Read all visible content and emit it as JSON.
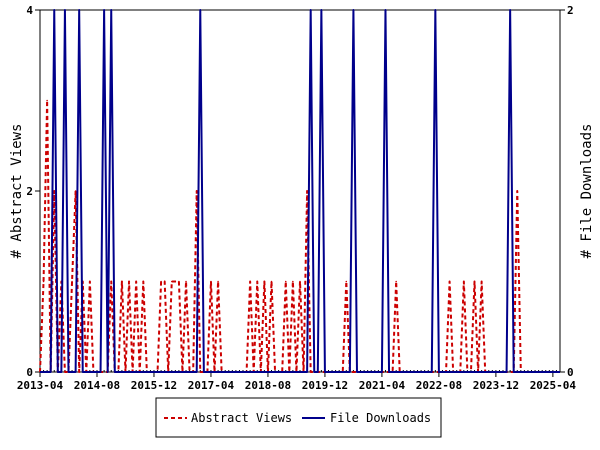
{
  "chart_data": {
    "type": "line",
    "x_start": "2013-04",
    "x_end": "2025-06",
    "x_tick_labels": [
      "2013-04",
      "2014-08",
      "2015-12",
      "2017-04",
      "2018-08",
      "2019-12",
      "2021-04",
      "2022-08",
      "2023-12",
      "2025-04"
    ],
    "y_left": {
      "label": "# Abstract Views",
      "lim": [
        0,
        4
      ],
      "ticks": [
        0,
        2,
        4
      ]
    },
    "y_right": {
      "label": "# File Downloads",
      "lim": [
        0,
        2
      ],
      "ticks": [
        0,
        2
      ]
    },
    "grid": false,
    "legend_position": "bottom-center",
    "series": [
      {
        "name": "Abstract Views",
        "axis": "left",
        "color": "#cc0000",
        "dash": "dashed",
        "points": [
          [
            "2013-04",
            0
          ],
          [
            "2013-05",
            1
          ],
          [
            "2013-06",
            3
          ],
          [
            "2013-07",
            0
          ],
          [
            "2013-08",
            2
          ],
          [
            "2013-09",
            0
          ],
          [
            "2013-10",
            1
          ],
          [
            "2013-11",
            0
          ],
          [
            "2013-12",
            0
          ],
          [
            "2014-01",
            1
          ],
          [
            "2014-02",
            2
          ],
          [
            "2014-03",
            0
          ],
          [
            "2014-04",
            1
          ],
          [
            "2014-05",
            0
          ],
          [
            "2014-06",
            1
          ],
          [
            "2014-07",
            0
          ],
          [
            "2014-08",
            0
          ],
          [
            "2014-09",
            0
          ],
          [
            "2014-10",
            0
          ],
          [
            "2014-11",
            0
          ],
          [
            "2014-12",
            1
          ],
          [
            "2015-01",
            0
          ],
          [
            "2015-02",
            0
          ],
          [
            "2015-03",
            1
          ],
          [
            "2015-04",
            0
          ],
          [
            "2015-05",
            1
          ],
          [
            "2015-06",
            0
          ],
          [
            "2015-07",
            1
          ],
          [
            "2015-08",
            0
          ],
          [
            "2015-09",
            1
          ],
          [
            "2015-10",
            0
          ],
          [
            "2015-11",
            0
          ],
          [
            "2015-12",
            0
          ],
          [
            "2016-01",
            0
          ],
          [
            "2016-02",
            1
          ],
          [
            "2016-03",
            1
          ],
          [
            "2016-04",
            0
          ],
          [
            "2016-05",
            1
          ],
          [
            "2016-06",
            1
          ],
          [
            "2016-07",
            1
          ],
          [
            "2016-08",
            0
          ],
          [
            "2016-09",
            1
          ],
          [
            "2016-10",
            0
          ],
          [
            "2016-11",
            0
          ],
          [
            "2016-12",
            2
          ],
          [
            "2017-01",
            0
          ],
          [
            "2017-02",
            0
          ],
          [
            "2017-03",
            0
          ],
          [
            "2017-04",
            1
          ],
          [
            "2017-05",
            0
          ],
          [
            "2017-06",
            1
          ],
          [
            "2017-07",
            0
          ],
          [
            "2017-08",
            0
          ],
          [
            "2017-09",
            0
          ],
          [
            "2017-10",
            0
          ],
          [
            "2017-11",
            0
          ],
          [
            "2017-12",
            0
          ],
          [
            "2018-01",
            0
          ],
          [
            "2018-02",
            0
          ],
          [
            "2018-03",
            1
          ],
          [
            "2018-04",
            0
          ],
          [
            "2018-05",
            1
          ],
          [
            "2018-06",
            0
          ],
          [
            "2018-07",
            1
          ],
          [
            "2018-08",
            0
          ],
          [
            "2018-09",
            1
          ],
          [
            "2018-10",
            0
          ],
          [
            "2018-11",
            0
          ],
          [
            "2018-12",
            0
          ],
          [
            "2019-01",
            1
          ],
          [
            "2019-02",
            0
          ],
          [
            "2019-03",
            1
          ],
          [
            "2019-04",
            0
          ],
          [
            "2019-05",
            1
          ],
          [
            "2019-06",
            0
          ],
          [
            "2019-07",
            2
          ],
          [
            "2019-08",
            0
          ],
          [
            "2019-09",
            0
          ],
          [
            "2019-10",
            0
          ],
          [
            "2019-11",
            0
          ],
          [
            "2019-12",
            0
          ],
          [
            "2020-01",
            0
          ],
          [
            "2020-02",
            0
          ],
          [
            "2020-03",
            0
          ],
          [
            "2020-04",
            0
          ],
          [
            "2020-05",
            0
          ],
          [
            "2020-06",
            1
          ],
          [
            "2020-07",
            0
          ],
          [
            "2020-08",
            0
          ],
          [
            "2020-09",
            0
          ],
          [
            "2020-10",
            0
          ],
          [
            "2020-11",
            0
          ],
          [
            "2020-12",
            0
          ],
          [
            "2021-01",
            0
          ],
          [
            "2021-02",
            0
          ],
          [
            "2021-03",
            0
          ],
          [
            "2021-04",
            0
          ],
          [
            "2021-05",
            0
          ],
          [
            "2021-06",
            0
          ],
          [
            "2021-07",
            0
          ],
          [
            "2021-08",
            1
          ],
          [
            "2021-09",
            0
          ],
          [
            "2021-10",
            0
          ],
          [
            "2021-11",
            0
          ],
          [
            "2021-12",
            0
          ],
          [
            "2022-01",
            0
          ],
          [
            "2022-02",
            0
          ],
          [
            "2022-03",
            0
          ],
          [
            "2022-04",
            0
          ],
          [
            "2022-05",
            0
          ],
          [
            "2022-06",
            0
          ],
          [
            "2022-07",
            0
          ],
          [
            "2022-08",
            0
          ],
          [
            "2022-09",
            0
          ],
          [
            "2022-10",
            0
          ],
          [
            "2022-11",
            1
          ],
          [
            "2022-12",
            0
          ],
          [
            "2023-01",
            0
          ],
          [
            "2023-02",
            0
          ],
          [
            "2023-03",
            1
          ],
          [
            "2023-04",
            0
          ],
          [
            "2023-05",
            0
          ],
          [
            "2023-06",
            1
          ],
          [
            "2023-07",
            0
          ],
          [
            "2023-08",
            1
          ],
          [
            "2023-09",
            0
          ],
          [
            "2023-10",
            0
          ],
          [
            "2023-11",
            0
          ],
          [
            "2023-12",
            0
          ],
          [
            "2024-01",
            0
          ],
          [
            "2024-02",
            0
          ],
          [
            "2024-03",
            0
          ],
          [
            "2024-04",
            0
          ],
          [
            "2024-05",
            0
          ],
          [
            "2024-06",
            2
          ],
          [
            "2024-07",
            0
          ],
          [
            "2024-08",
            0
          ],
          [
            "2024-09",
            0
          ],
          [
            "2024-10",
            0
          ],
          [
            "2024-11",
            0
          ],
          [
            "2024-12",
            0
          ],
          [
            "2025-01",
            0
          ],
          [
            "2025-02",
            0
          ],
          [
            "2025-03",
            0
          ],
          [
            "2025-04",
            0
          ],
          [
            "2025-05",
            0
          ],
          [
            "2025-06",
            0
          ]
        ]
      },
      {
        "name": "File Downloads",
        "axis": "right",
        "color": "#00008b",
        "dash": "solid",
        "points": [
          [
            "2013-04",
            0
          ],
          [
            "2013-05",
            0
          ],
          [
            "2013-06",
            0
          ],
          [
            "2013-07",
            0
          ],
          [
            "2013-08",
            2
          ],
          [
            "2013-09",
            0
          ],
          [
            "2013-10",
            0
          ],
          [
            "2013-11",
            2
          ],
          [
            "2013-12",
            0
          ],
          [
            "2014-01",
            0
          ],
          [
            "2014-02",
            0
          ],
          [
            "2014-03",
            2
          ],
          [
            "2014-04",
            0
          ],
          [
            "2014-05",
            0
          ],
          [
            "2014-06",
            0
          ],
          [
            "2014-07",
            0
          ],
          [
            "2014-08",
            0
          ],
          [
            "2014-09",
            0
          ],
          [
            "2014-10",
            2
          ],
          [
            "2014-11",
            0
          ],
          [
            "2014-12",
            2
          ],
          [
            "2015-01",
            0
          ],
          [
            "2015-02",
            0
          ],
          [
            "2015-03",
            0
          ],
          [
            "2015-04",
            0
          ],
          [
            "2015-05",
            0
          ],
          [
            "2015-06",
            0
          ],
          [
            "2015-07",
            0
          ],
          [
            "2015-08",
            0
          ],
          [
            "2015-09",
            0
          ],
          [
            "2015-10",
            0
          ],
          [
            "2015-11",
            0
          ],
          [
            "2015-12",
            0
          ],
          [
            "2016-01",
            0
          ],
          [
            "2016-02",
            0
          ],
          [
            "2016-03",
            0
          ],
          [
            "2016-04",
            0
          ],
          [
            "2016-05",
            0
          ],
          [
            "2016-06",
            0
          ],
          [
            "2016-07",
            0
          ],
          [
            "2016-08",
            0
          ],
          [
            "2016-09",
            0
          ],
          [
            "2016-10",
            0
          ],
          [
            "2016-11",
            0
          ],
          [
            "2016-12",
            0
          ],
          [
            "2017-01",
            2
          ],
          [
            "2017-02",
            0
          ],
          [
            "2017-03",
            0
          ],
          [
            "2017-04",
            0
          ],
          [
            "2017-05",
            0
          ],
          [
            "2017-06",
            0
          ],
          [
            "2017-07",
            0
          ],
          [
            "2017-08",
            0
          ],
          [
            "2017-09",
            0
          ],
          [
            "2017-10",
            0
          ],
          [
            "2017-11",
            0
          ],
          [
            "2017-12",
            0
          ],
          [
            "2018-01",
            0
          ],
          [
            "2018-02",
            0
          ],
          [
            "2018-03",
            0
          ],
          [
            "2018-04",
            0
          ],
          [
            "2018-05",
            0
          ],
          [
            "2018-06",
            0
          ],
          [
            "2018-07",
            0
          ],
          [
            "2018-08",
            0
          ],
          [
            "2018-09",
            0
          ],
          [
            "2018-10",
            0
          ],
          [
            "2018-11",
            0
          ],
          [
            "2018-12",
            0
          ],
          [
            "2019-01",
            0
          ],
          [
            "2019-02",
            0
          ],
          [
            "2019-03",
            0
          ],
          [
            "2019-04",
            0
          ],
          [
            "2019-05",
            0
          ],
          [
            "2019-06",
            0
          ],
          [
            "2019-07",
            0
          ],
          [
            "2019-08",
            2
          ],
          [
            "2019-09",
            0
          ],
          [
            "2019-10",
            0
          ],
          [
            "2019-11",
            2
          ],
          [
            "2019-12",
            0
          ],
          [
            "2020-01",
            0
          ],
          [
            "2020-02",
            0
          ],
          [
            "2020-03",
            0
          ],
          [
            "2020-04",
            0
          ],
          [
            "2020-05",
            0
          ],
          [
            "2020-06",
            0
          ],
          [
            "2020-07",
            0
          ],
          [
            "2020-08",
            2
          ],
          [
            "2020-09",
            0
          ],
          [
            "2020-10",
            0
          ],
          [
            "2020-11",
            0
          ],
          [
            "2020-12",
            0
          ],
          [
            "2021-01",
            0
          ],
          [
            "2021-02",
            0
          ],
          [
            "2021-03",
            0
          ],
          [
            "2021-04",
            0
          ],
          [
            "2021-05",
            2
          ],
          [
            "2021-06",
            0
          ],
          [
            "2021-07",
            0
          ],
          [
            "2021-08",
            0
          ],
          [
            "2021-09",
            0
          ],
          [
            "2021-10",
            0
          ],
          [
            "2021-11",
            0
          ],
          [
            "2021-12",
            0
          ],
          [
            "2022-01",
            0
          ],
          [
            "2022-02",
            0
          ],
          [
            "2022-03",
            0
          ],
          [
            "2022-04",
            0
          ],
          [
            "2022-05",
            0
          ],
          [
            "2022-06",
            0
          ],
          [
            "2022-07",
            2
          ],
          [
            "2022-08",
            0
          ],
          [
            "2022-09",
            0
          ],
          [
            "2022-10",
            0
          ],
          [
            "2022-11",
            0
          ],
          [
            "2022-12",
            0
          ],
          [
            "2023-01",
            0
          ],
          [
            "2023-02",
            0
          ],
          [
            "2023-03",
            0
          ],
          [
            "2023-04",
            0
          ],
          [
            "2023-05",
            0
          ],
          [
            "2023-06",
            0
          ],
          [
            "2023-07",
            0
          ],
          [
            "2023-08",
            0
          ],
          [
            "2023-09",
            0
          ],
          [
            "2023-10",
            0
          ],
          [
            "2023-11",
            0
          ],
          [
            "2023-12",
            0
          ],
          [
            "2024-01",
            0
          ],
          [
            "2024-02",
            0
          ],
          [
            "2024-03",
            0
          ],
          [
            "2024-04",
            2
          ],
          [
            "2024-05",
            0
          ],
          [
            "2024-06",
            0
          ],
          [
            "2024-07",
            0
          ],
          [
            "2024-08",
            0
          ],
          [
            "2024-09",
            0
          ],
          [
            "2024-10",
            0
          ],
          [
            "2024-11",
            0
          ],
          [
            "2024-12",
            0
          ],
          [
            "2025-01",
            0
          ],
          [
            "2025-02",
            0
          ],
          [
            "2025-03",
            0
          ],
          [
            "2025-04",
            0
          ],
          [
            "2025-05",
            0
          ],
          [
            "2025-06",
            0
          ]
        ]
      }
    ]
  }
}
